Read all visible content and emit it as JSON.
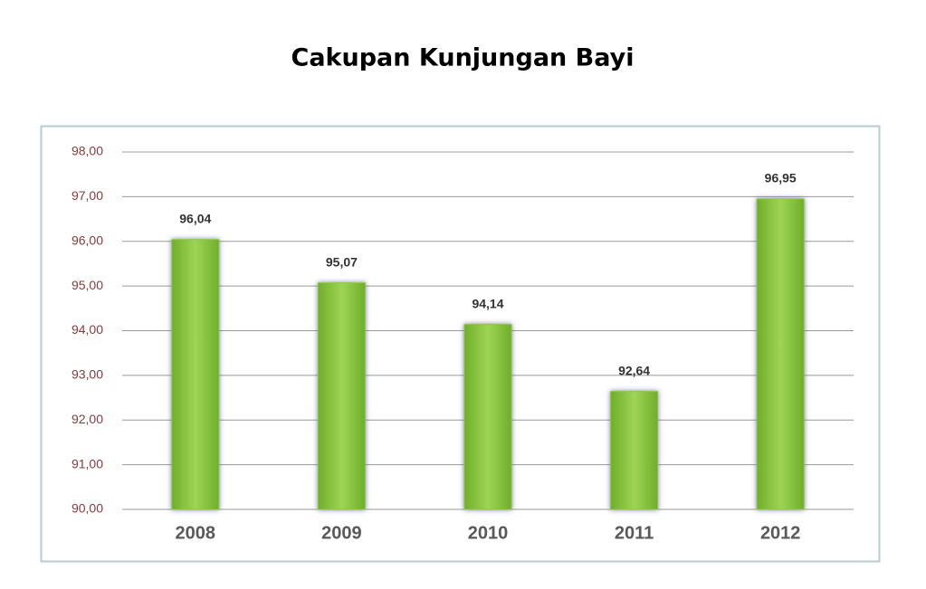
{
  "chart_data": {
    "type": "bar",
    "title": "Cakupan Kunjungan Bayi",
    "categories": [
      "2008",
      "2009",
      "2010",
      "2011",
      "2012"
    ],
    "values": [
      96.04,
      95.07,
      94.14,
      92.64,
      96.95
    ],
    "value_labels": [
      "96,04",
      "95,07",
      "94,14",
      "92,64",
      "96,95"
    ],
    "color": "#8dc63f",
    "ylim": [
      90,
      98
    ],
    "yticks": [
      {
        "value": 90,
        "label": "90,00"
      },
      {
        "value": 91,
        "label": "91,00"
      },
      {
        "value": 92,
        "label": "92,00"
      },
      {
        "value": 93,
        "label": "93,00"
      },
      {
        "value": 94,
        "label": "94,00"
      },
      {
        "value": 95,
        "label": "95,00"
      },
      {
        "value": 96,
        "label": "96,00"
      },
      {
        "value": 97,
        "label": "97,00"
      },
      {
        "value": 98,
        "label": "98,00"
      }
    ],
    "grid": true
  }
}
